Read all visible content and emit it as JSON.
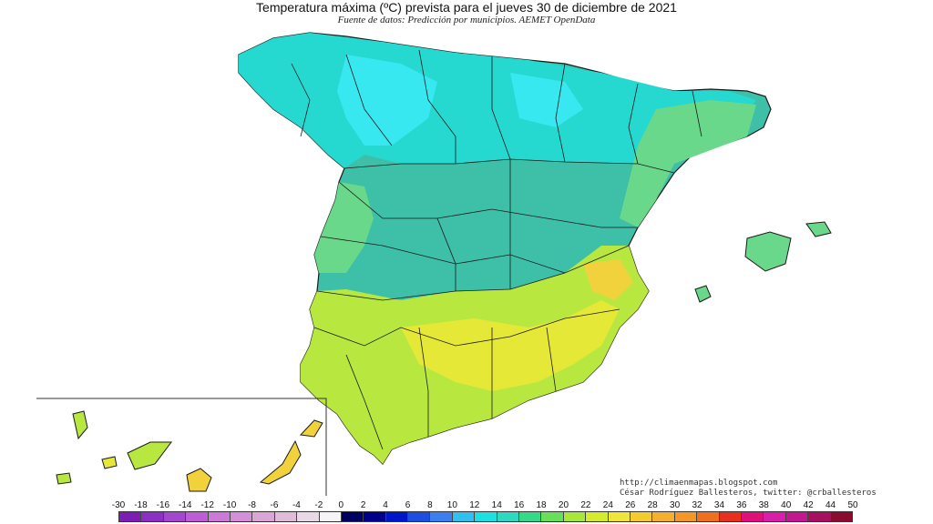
{
  "header": {
    "title": "Temperatura máxima (ºC) prevista para el jueves 30 de diciembre de 2021",
    "source": "Fuente de datos: Predicción por municipios. AEMET OpenData"
  },
  "credits": {
    "url": "http://climaenmapas.blogspot.com",
    "author": "César Rodríguez Ballesteros, twitter: @crballesteros"
  },
  "legend": {
    "labels": [
      "-30",
      "-18",
      "-16",
      "-14",
      "-12",
      "-10",
      "-8",
      "-6",
      "-4",
      "-2",
      "0",
      "2",
      "4",
      "6",
      "8",
      "10",
      "12",
      "14",
      "16",
      "18",
      "20",
      "22",
      "24",
      "26",
      "28",
      "30",
      "32",
      "34",
      "36",
      "38",
      "40",
      "42",
      "44",
      "50"
    ],
    "colors": [
      "#7d1fb5",
      "#8c30c4",
      "#a447cf",
      "#bd5ed6",
      "#cc7ad8",
      "#d48fd8",
      "#dba5d6",
      "#e0bcd8",
      "#e9d8e6",
      "#f7f4f7",
      "#000060",
      "#00008a",
      "#0016c8",
      "#1e4ee0",
      "#3d7ff0",
      "#33c0ee",
      "#1ee0e0",
      "#2fd9c0",
      "#36d98a",
      "#6ae05a",
      "#a8e83a",
      "#d4ec2c",
      "#f0e63a",
      "#f5cc30",
      "#f5b030",
      "#f59628",
      "#f07020",
      "#e83020",
      "#e0107a",
      "#d81fa8",
      "#c41890",
      "#a81060",
      "#8c0c30"
    ]
  },
  "map_colors": {
    "north": "#26d9d0",
    "cold": "#38e8f0",
    "centre": "#3dbfa8",
    "mild": "#6ad88a",
    "warm": "#b8e840",
    "hot": "#e6e838",
    "hotter": "#f2d23c",
    "border": "#1a1a1a"
  }
}
